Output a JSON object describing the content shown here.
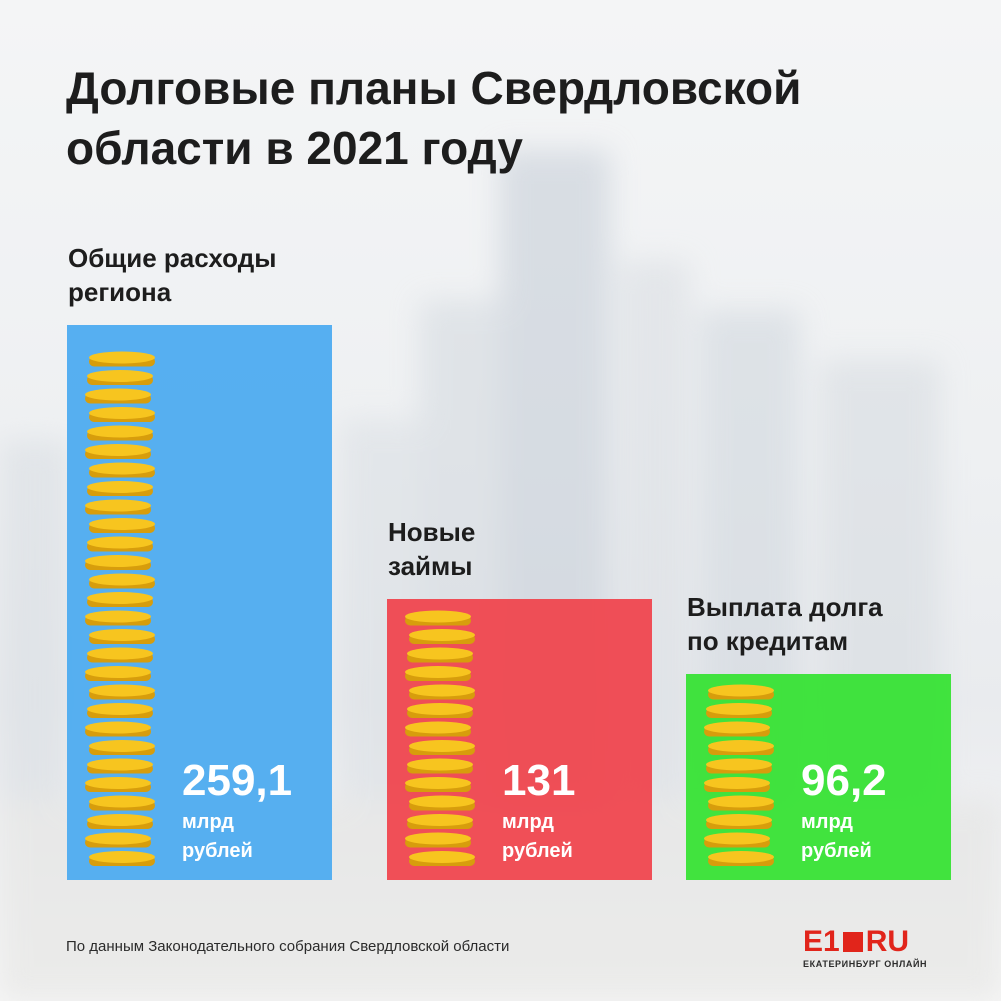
{
  "title": "Долговые планы Свердловской\nобласти в 2021 году",
  "source": "По данным Законодательного собрания Свердловской области",
  "logo": {
    "main": "E1",
    "suffix": "RU",
    "subtitle": "ЕКАТЕРИНБУРГ ОНЛАЙН"
  },
  "colors": {
    "blue": "#4aaaf0",
    "red": "#f0434b",
    "green": "#34e230",
    "coin": "#f7c51f",
    "coin_edge": "#d79d0c",
    "logo_red": "#e1251b"
  },
  "chart_data": {
    "type": "bar",
    "categories": [
      "Общие расходы\nрегиона",
      "Новые\nзаймы",
      "Выплата долга\nпо кредитам"
    ],
    "values": [
      259.1,
      131,
      96.2
    ],
    "value_labels": [
      "259,1",
      "131",
      "96,2"
    ],
    "unit_label": "млрд\nрублей",
    "bar_colors": [
      "#4aaaf0",
      "#f0434b",
      "#34e230"
    ],
    "title": "Долговые планы Свердловской\nобласти в 2021 году",
    "xlabel": "",
    "ylabel": "",
    "grid": false,
    "legend": "none"
  }
}
